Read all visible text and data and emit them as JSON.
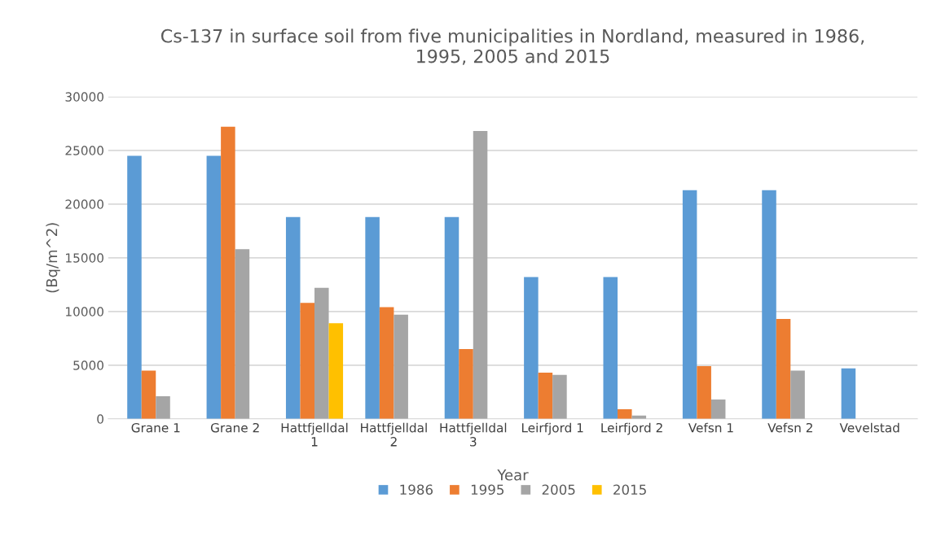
{
  "chart_data": {
    "type": "bar",
    "title": "Cs-137 in surface soil from five municipalities in Nordland, measured in 1986,\n1995, 2005 and 2015",
    "xlabel": "Year",
    "ylabel": "(Bq/m^2)",
    "categories": [
      "Grane 1",
      "Grane 2",
      "Hattfjelldal\n1",
      "Hattfjelldal\n2",
      "Hattfjelldal\n3",
      "Leirfjord 1",
      "Leirfjord 2",
      "Vefsn 1",
      "Vefsn 2",
      "Vevelstad"
    ],
    "series": [
      {
        "name": "1986",
        "color": "#5b9bd5",
        "values": [
          24500,
          24500,
          18800,
          18800,
          18800,
          13200,
          13200,
          21300,
          21300,
          4700
        ]
      },
      {
        "name": "1995",
        "color": "#ed7d31",
        "values": [
          4500,
          27200,
          10800,
          10400,
          6500,
          4300,
          900,
          4900,
          9300,
          null
        ]
      },
      {
        "name": "2005",
        "color": "#a5a5a5",
        "values": [
          2100,
          15800,
          12200,
          9700,
          26800,
          4100,
          300,
          1800,
          4500,
          null
        ]
      },
      {
        "name": "2015",
        "color": "#ffc000",
        "values": [
          null,
          null,
          8900,
          null,
          null,
          null,
          null,
          null,
          null,
          null
        ]
      }
    ],
    "ylim": [
      0,
      30000
    ],
    "yticks": [
      0,
      5000,
      10000,
      15000,
      20000,
      25000,
      30000
    ],
    "grid": "y",
    "legend": "bottom"
  }
}
